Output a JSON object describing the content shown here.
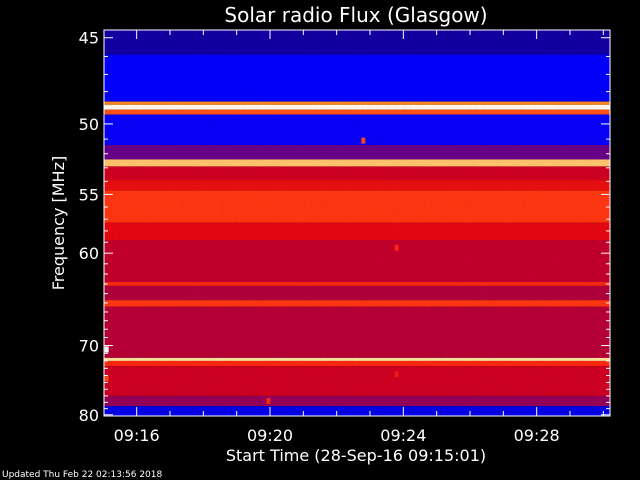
{
  "chart_data": {
    "type": "heatmap",
    "title": "Solar radio Flux (Glasgow)",
    "xlabel": "Start Time (28-Sep-16 09:15:01)",
    "ylabel": "Frequency [MHz]",
    "x_ticks": [
      "09:16",
      "09:20",
      "09:24",
      "09:28"
    ],
    "x_tick_minutes": [
      16,
      20,
      24,
      28
    ],
    "x_range_minutes": [
      15.02,
      30.2
    ],
    "y_ticks": [
      45,
      50,
      55,
      60,
      70,
      80
    ],
    "y_range": [
      44.6,
      80.2
    ],
    "y_scale": "reciprocal",
    "colormap": [
      "#1a0070",
      "#0000ff",
      "#8b0060",
      "#e00010",
      "#ff3010",
      "#ff9020",
      "#ffe8a0",
      "#ffffff"
    ],
    "bands": [
      {
        "f1": 44.6,
        "f2": 45.9,
        "level": 0.05
      },
      {
        "f1": 45.9,
        "f2": 48.6,
        "level": 0.14
      },
      {
        "f1": 48.6,
        "f2": 48.8,
        "level": 0.7
      },
      {
        "f1": 48.8,
        "f2": 49.1,
        "level": 0.97
      },
      {
        "f1": 49.1,
        "f2": 49.4,
        "level": 0.62
      },
      {
        "f1": 49.4,
        "f2": 51.4,
        "level": 0.15
      },
      {
        "f1": 51.4,
        "f2": 52.4,
        "level": 0.25
      },
      {
        "f1": 52.4,
        "f2": 52.9,
        "level": 0.8
      },
      {
        "f1": 52.9,
        "f2": 53.9,
        "level": 0.4
      },
      {
        "f1": 53.9,
        "f2": 54.7,
        "level": 0.47
      },
      {
        "f1": 54.7,
        "f2": 57.3,
        "level": 0.58
      },
      {
        "f1": 57.3,
        "f2": 58.8,
        "level": 0.45
      },
      {
        "f1": 58.8,
        "f2": 62.8,
        "level": 0.38
      },
      {
        "f1": 62.8,
        "f2": 63.2,
        "level": 0.55
      },
      {
        "f1": 63.2,
        "f2": 64.7,
        "level": 0.35
      },
      {
        "f1": 64.7,
        "f2": 65.4,
        "level": 0.58
      },
      {
        "f1": 65.4,
        "f2": 71.6,
        "level": 0.36
      },
      {
        "f1": 71.6,
        "f2": 72.0,
        "level": 0.85
      },
      {
        "f1": 72.0,
        "f2": 72.7,
        "level": 0.55
      },
      {
        "f1": 72.7,
        "f2": 77.0,
        "level": 0.4
      },
      {
        "f1": 77.0,
        "f2": 78.6,
        "level": 0.3
      },
      {
        "f1": 78.6,
        "f2": 80.2,
        "level": 0.12
      }
    ],
    "bursts": [
      {
        "t": 22.8,
        "f": 51.1,
        "level": 0.6
      },
      {
        "t": 23.8,
        "f": 59.5,
        "level": 0.55
      },
      {
        "t": 23.8,
        "f": 73.8,
        "level": 0.5
      },
      {
        "t": 15.1,
        "f": 70.5,
        "level": 1.0
      },
      {
        "t": 15.1,
        "f": 74.4,
        "level": 0.6
      },
      {
        "t": 19.95,
        "f": 77.8,
        "level": 0.55
      }
    ],
    "grid": false,
    "legend": "none"
  },
  "footer": {
    "updated": "Updated Thu Feb 22 02:13:56 2018"
  }
}
